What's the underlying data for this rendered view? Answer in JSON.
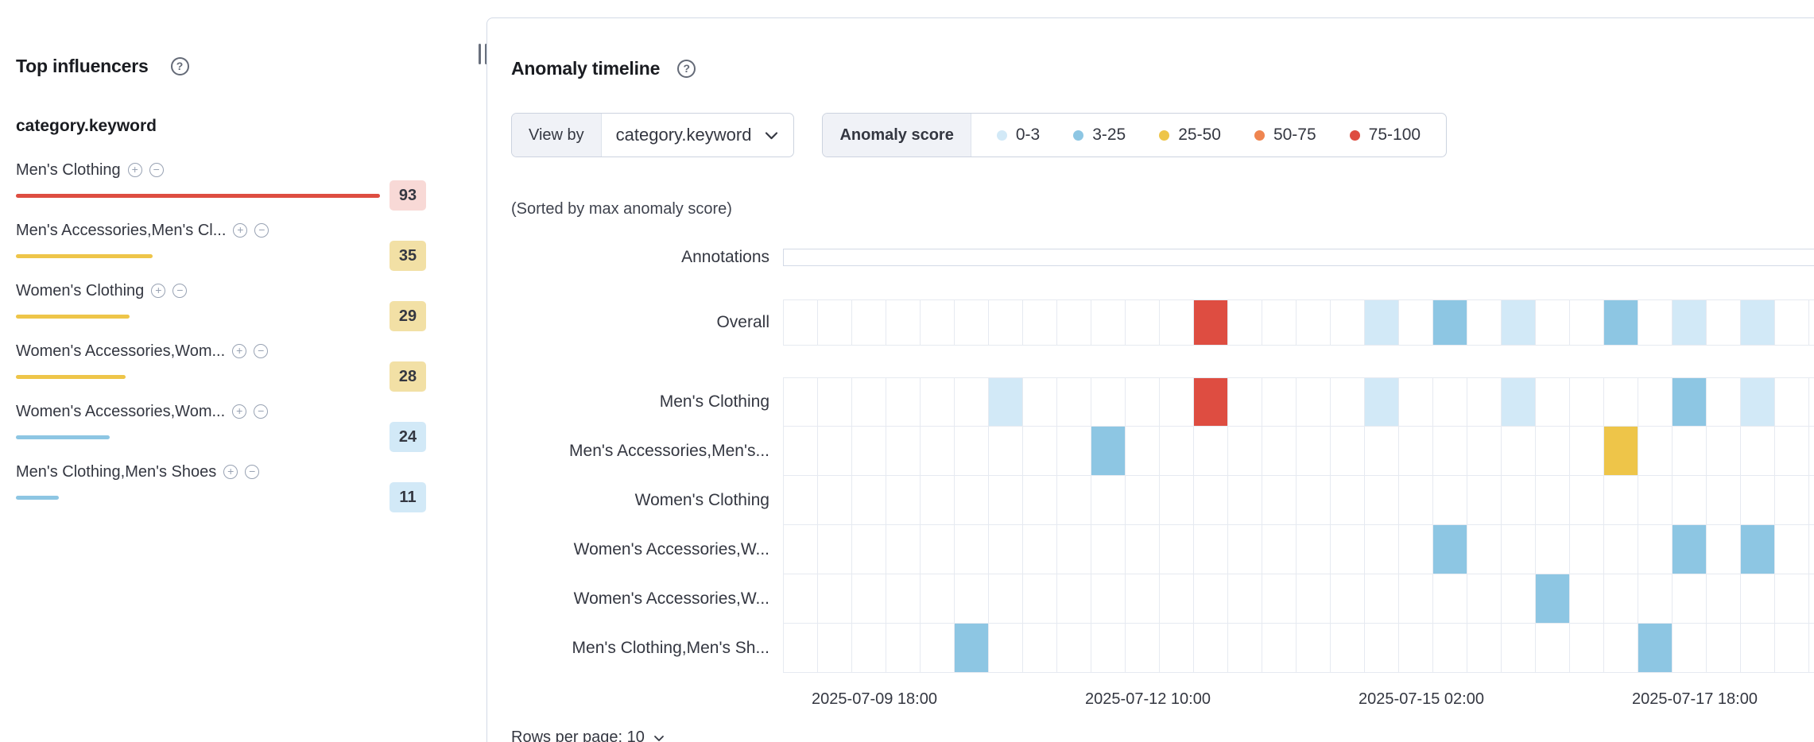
{
  "colors": {
    "severity": {
      "low": "#d2e9f7",
      "warning": "#8dc6e3",
      "minor": "#eec549",
      "major": "#ef8550",
      "critical": "#de4d41"
    },
    "badge_bg": {
      "critical": "#f8d9d6",
      "minor": "#f2e0a5",
      "warning": "#d2e9f7"
    },
    "badge_text": "#343741"
  },
  "top_influencers": {
    "title": "Top influencers",
    "help_icon": "question-in-circle",
    "field": "category.keyword",
    "items": [
      {
        "name": "Men's Clothing",
        "score": "93",
        "severity": "critical"
      },
      {
        "name": "Men's Accessories,Men's Cl...",
        "score": "35",
        "severity": "minor"
      },
      {
        "name": "Women's Clothing",
        "score": "29",
        "severity": "minor"
      },
      {
        "name": "Women's Accessories,Wom...",
        "score": "28",
        "severity": "minor"
      },
      {
        "name": "Women's Accessories,Wom...",
        "score": "24",
        "severity": "warning"
      },
      {
        "name": "Men's Clothing,Men's Shoes",
        "score": "11",
        "severity": "warning"
      }
    ]
  },
  "anomaly_timeline": {
    "title": "Anomaly timeline",
    "help_icon": "question-in-circle",
    "view_by": {
      "label": "View by",
      "value": "category.keyword"
    },
    "legend": {
      "label": "Anomaly score",
      "items": [
        {
          "range": "0-3",
          "severity": "low"
        },
        {
          "range": "3-25",
          "severity": "warning"
        },
        {
          "range": "25-50",
          "severity": "minor"
        },
        {
          "range": "50-75",
          "severity": "major"
        },
        {
          "range": "75-100",
          "severity": "critical"
        }
      ]
    },
    "sort_note": "(Sorted by max anomaly score)",
    "swimlanes": {
      "columns": 31,
      "annotations_label": "Annotations",
      "overall": {
        "label": "Overall",
        "cells": [
          {
            "col": 12,
            "severity": "critical"
          },
          {
            "col": 17,
            "severity": "low"
          },
          {
            "col": 19,
            "severity": "warning"
          },
          {
            "col": 21,
            "severity": "low"
          },
          {
            "col": 24,
            "severity": "warning"
          },
          {
            "col": 26,
            "severity": "low"
          },
          {
            "col": 28,
            "severity": "low"
          }
        ]
      },
      "categories": [
        {
          "label": "Men's Clothing",
          "cells": [
            {
              "col": 6,
              "severity": "low"
            },
            {
              "col": 12,
              "severity": "critical"
            },
            {
              "col": 17,
              "severity": "low"
            },
            {
              "col": 21,
              "severity": "low"
            },
            {
              "col": 26,
              "severity": "warning"
            },
            {
              "col": 28,
              "severity": "low"
            }
          ]
        },
        {
          "label": "Men's Accessories,Men's...",
          "cells": [
            {
              "col": 9,
              "severity": "warning"
            },
            {
              "col": 24,
              "severity": "minor"
            }
          ]
        },
        {
          "label": "Women's Clothing",
          "cells": []
        },
        {
          "label": "Women's Accessories,W...",
          "cells": [
            {
              "col": 19,
              "severity": "warning"
            },
            {
              "col": 26,
              "severity": "warning"
            },
            {
              "col": 28,
              "severity": "warning"
            }
          ]
        },
        {
          "label": "Women's Accessories,W...",
          "cells": [
            {
              "col": 22,
              "severity": "warning"
            }
          ]
        },
        {
          "label": "Men's Clothing,Men's Sh...",
          "cells": [
            {
              "col": 5,
              "severity": "warning"
            },
            {
              "col": 25,
              "severity": "warning"
            }
          ]
        }
      ]
    },
    "x_axis": [
      "2025-07-09 18:00",
      "2025-07-12 10:00",
      "2025-07-15 02:00",
      "2025-07-17 18:00"
    ],
    "rows_per_page": "Rows per page: 10"
  }
}
